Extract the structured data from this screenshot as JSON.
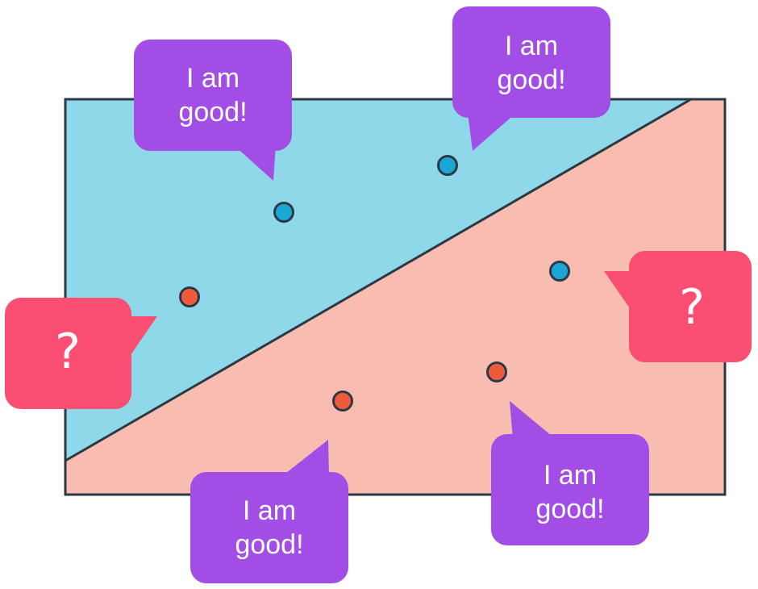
{
  "colors": {
    "region_top": "#8fd8ea",
    "region_bottom": "#f9bcb1",
    "border": "#2b3a42",
    "point_blue": "#1aa7d6",
    "point_red": "#f05a3c",
    "bubble_good": "#a24de6",
    "bubble_question": "#fa4f73"
  },
  "bubbles": {
    "top_left": {
      "line1": "I am",
      "line2": "good!"
    },
    "top_right": {
      "line1": "I am",
      "line2": "good!"
    },
    "bottom_left": {
      "line1": "I am",
      "line2": "good!"
    },
    "bottom_right": {
      "line1": "I am",
      "line2": "good!"
    },
    "question_left": {
      "text": "?"
    },
    "question_right": {
      "text": "?"
    }
  }
}
